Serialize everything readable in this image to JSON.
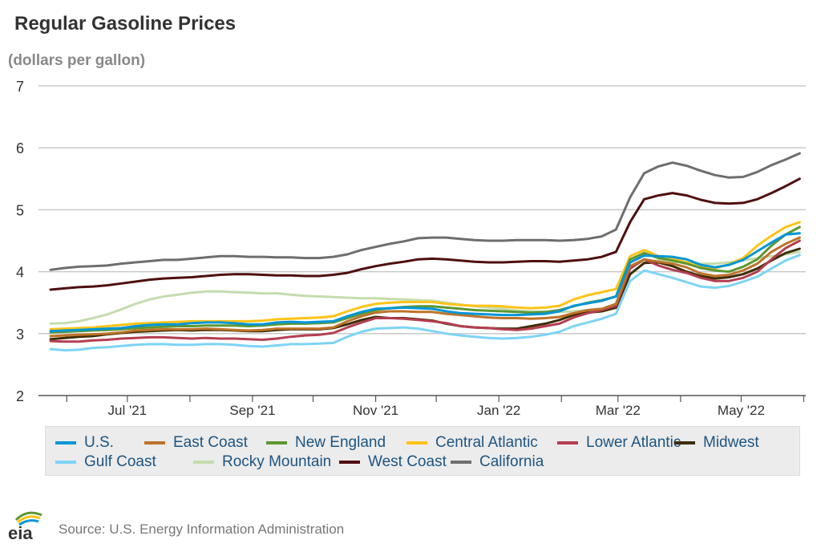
{
  "title": "Regular Gasoline Prices",
  "unit_label": "(dollars per gallon)",
  "source": "Source: U.S. Energy Information Administration",
  "logo_text": "eia",
  "chart_data": {
    "type": "line",
    "title": "Regular Gasoline Prices",
    "ylabel": "(dollars per gallon)",
    "ylim": [
      2,
      7
    ],
    "yticks": [
      "2",
      "3",
      "4",
      "5",
      "6",
      "7"
    ],
    "xtick_labels": [
      "Jul '21",
      "Sep '21",
      "Nov '21",
      "Jan '22",
      "Mar '22",
      "May '22"
    ],
    "grid": "horizontal",
    "legend_position": "bottom",
    "x": [
      "2021-05-24",
      "2021-05-31",
      "2021-06-07",
      "2021-06-14",
      "2021-06-21",
      "2021-06-28",
      "2021-07-05",
      "2021-07-12",
      "2021-07-19",
      "2021-07-26",
      "2021-08-02",
      "2021-08-09",
      "2021-08-16",
      "2021-08-23",
      "2021-08-30",
      "2021-09-06",
      "2021-09-13",
      "2021-09-20",
      "2021-09-27",
      "2021-10-04",
      "2021-10-11",
      "2021-10-18",
      "2021-10-25",
      "2021-11-01",
      "2021-11-08",
      "2021-11-15",
      "2021-11-22",
      "2021-11-29",
      "2021-12-06",
      "2021-12-13",
      "2021-12-20",
      "2021-12-27",
      "2022-01-03",
      "2022-01-10",
      "2022-01-17",
      "2022-01-24",
      "2022-01-31",
      "2022-02-07",
      "2022-02-14",
      "2022-02-21",
      "2022-02-28",
      "2022-03-07",
      "2022-03-14",
      "2022-03-21",
      "2022-03-28",
      "2022-04-04",
      "2022-04-11",
      "2022-04-18",
      "2022-04-25",
      "2022-05-02",
      "2022-05-09",
      "2022-05-16",
      "2022-05-23",
      "2022-05-30"
    ],
    "series": [
      {
        "name": "U.S.",
        "color": "#0096d7",
        "values": [
          3.04,
          3.05,
          3.06,
          3.07,
          3.08,
          3.09,
          3.12,
          3.14,
          3.15,
          3.15,
          3.17,
          3.18,
          3.18,
          3.17,
          3.15,
          3.15,
          3.18,
          3.19,
          3.18,
          3.19,
          3.2,
          3.28,
          3.35,
          3.4,
          3.41,
          3.42,
          3.41,
          3.4,
          3.36,
          3.33,
          3.32,
          3.31,
          3.3,
          3.3,
          3.31,
          3.32,
          3.36,
          3.45,
          3.49,
          3.53,
          3.6,
          4.15,
          4.26,
          4.25,
          4.24,
          4.2,
          4.11,
          4.07,
          4.11,
          4.19,
          4.33,
          4.47,
          4.6,
          4.62
        ]
      },
      {
        "name": "East Coast",
        "color": "#bd732a",
        "values": [
          2.96,
          2.97,
          2.98,
          2.99,
          3.0,
          3.02,
          3.05,
          3.06,
          3.07,
          3.07,
          3.07,
          3.08,
          3.07,
          3.06,
          3.05,
          3.06,
          3.08,
          3.08,
          3.08,
          3.08,
          3.1,
          3.2,
          3.28,
          3.34,
          3.36,
          3.36,
          3.35,
          3.35,
          3.32,
          3.3,
          3.28,
          3.26,
          3.25,
          3.25,
          3.24,
          3.25,
          3.27,
          3.33,
          3.38,
          3.4,
          3.48,
          4.09,
          4.2,
          4.16,
          4.13,
          4.07,
          3.97,
          3.93,
          3.95,
          4.02,
          4.13,
          4.32,
          4.45,
          4.55
        ]
      },
      {
        "name": "New England",
        "color": "#5d9732",
        "values": [
          3.02,
          3.03,
          3.04,
          3.05,
          3.06,
          3.07,
          3.09,
          3.1,
          3.11,
          3.12,
          3.12,
          3.13,
          3.13,
          3.13,
          3.12,
          3.13,
          3.15,
          3.16,
          3.16,
          3.17,
          3.18,
          3.25,
          3.32,
          3.38,
          3.41,
          3.43,
          3.44,
          3.44,
          3.42,
          3.4,
          3.38,
          3.37,
          3.36,
          3.35,
          3.34,
          3.35,
          3.38,
          3.44,
          3.5,
          3.54,
          3.6,
          4.2,
          4.3,
          4.22,
          4.18,
          4.13,
          4.06,
          4.02,
          4.0,
          4.08,
          4.2,
          4.42,
          4.6,
          4.72
        ]
      },
      {
        "name": "Central Atlantic",
        "color": "#ffc316",
        "values": [
          3.07,
          3.08,
          3.09,
          3.1,
          3.12,
          3.14,
          3.16,
          3.17,
          3.18,
          3.19,
          3.2,
          3.2,
          3.2,
          3.2,
          3.2,
          3.21,
          3.23,
          3.24,
          3.25,
          3.26,
          3.28,
          3.36,
          3.43,
          3.48,
          3.5,
          3.51,
          3.51,
          3.51,
          3.48,
          3.46,
          3.45,
          3.45,
          3.44,
          3.42,
          3.41,
          3.42,
          3.45,
          3.55,
          3.62,
          3.67,
          3.72,
          4.25,
          4.35,
          4.25,
          4.21,
          4.15,
          4.08,
          4.05,
          4.12,
          4.22,
          4.42,
          4.58,
          4.72,
          4.8
        ]
      },
      {
        "name": "Lower Atlantic",
        "color": "#b43e51",
        "values": [
          2.88,
          2.87,
          2.87,
          2.89,
          2.9,
          2.92,
          2.93,
          2.94,
          2.94,
          2.93,
          2.92,
          2.93,
          2.92,
          2.92,
          2.91,
          2.9,
          2.92,
          2.95,
          2.97,
          2.98,
          3.01,
          3.1,
          3.18,
          3.25,
          3.25,
          3.24,
          3.22,
          3.2,
          3.17,
          3.12,
          3.1,
          3.09,
          3.07,
          3.06,
          3.08,
          3.12,
          3.16,
          3.26,
          3.33,
          3.38,
          3.45,
          4.05,
          4.2,
          4.1,
          4.03,
          3.98,
          3.9,
          3.85,
          3.85,
          3.9,
          4.0,
          4.2,
          4.38,
          4.5
        ]
      },
      {
        "name": "Midwest",
        "color": "#3d2d05",
        "values": [
          2.91,
          2.93,
          2.95,
          2.96,
          2.99,
          3.01,
          3.03,
          3.04,
          3.05,
          3.06,
          3.05,
          3.06,
          3.06,
          3.05,
          3.04,
          3.04,
          3.06,
          3.07,
          3.07,
          3.07,
          3.09,
          3.15,
          3.22,
          3.27,
          3.25,
          3.25,
          3.23,
          3.21,
          3.16,
          3.12,
          3.1,
          3.09,
          3.08,
          3.08,
          3.12,
          3.16,
          3.22,
          3.3,
          3.34,
          3.36,
          3.42,
          3.96,
          4.14,
          4.15,
          4.09,
          4.0,
          3.93,
          3.89,
          3.91,
          3.96,
          4.05,
          4.18,
          4.3,
          4.37
        ]
      },
      {
        "name": "Gulf Coast",
        "color": "#7dd4f5",
        "values": [
          2.75,
          2.73,
          2.74,
          2.77,
          2.78,
          2.8,
          2.82,
          2.83,
          2.83,
          2.82,
          2.82,
          2.83,
          2.83,
          2.82,
          2.8,
          2.79,
          2.81,
          2.83,
          2.83,
          2.84,
          2.85,
          2.95,
          3.03,
          3.08,
          3.09,
          3.1,
          3.08,
          3.04,
          3.0,
          2.97,
          2.95,
          2.93,
          2.92,
          2.93,
          2.95,
          2.98,
          3.03,
          3.12,
          3.18,
          3.24,
          3.32,
          3.85,
          4.02,
          3.96,
          3.9,
          3.83,
          3.76,
          3.74,
          3.77,
          3.84,
          3.92,
          4.05,
          4.18,
          4.27
        ]
      },
      {
        "name": "Rocky Mountain",
        "color": "#c5dcae",
        "values": [
          3.16,
          3.17,
          3.2,
          3.25,
          3.31,
          3.39,
          3.48,
          3.55,
          3.6,
          3.63,
          3.66,
          3.68,
          3.68,
          3.67,
          3.66,
          3.65,
          3.65,
          3.63,
          3.61,
          3.6,
          3.59,
          3.58,
          3.57,
          3.57,
          3.56,
          3.55,
          3.54,
          3.53,
          3.5,
          3.47,
          3.44,
          3.42,
          3.4,
          3.37,
          3.36,
          3.35,
          3.35,
          3.36,
          3.38,
          3.4,
          3.45,
          3.95,
          4.15,
          4.18,
          4.16,
          4.15,
          4.13,
          4.13,
          4.15,
          4.18,
          4.22,
          4.25,
          4.28,
          4.32
        ]
      },
      {
        "name": "West Coast",
        "color": "#4f0f0f",
        "values": [
          3.71,
          3.73,
          3.75,
          3.76,
          3.78,
          3.81,
          3.84,
          3.87,
          3.89,
          3.9,
          3.91,
          3.93,
          3.95,
          3.96,
          3.96,
          3.95,
          3.94,
          3.94,
          3.93,
          3.93,
          3.95,
          3.98,
          4.04,
          4.09,
          4.13,
          4.16,
          4.2,
          4.21,
          4.2,
          4.18,
          4.16,
          4.15,
          4.15,
          4.16,
          4.17,
          4.17,
          4.16,
          4.18,
          4.2,
          4.24,
          4.32,
          4.8,
          5.17,
          5.23,
          5.27,
          5.23,
          5.16,
          5.11,
          5.1,
          5.11,
          5.17,
          5.27,
          5.38,
          5.5
        ]
      },
      {
        "name": "California",
        "color": "#6e6e6e",
        "values": [
          4.03,
          4.06,
          4.08,
          4.09,
          4.1,
          4.13,
          4.15,
          4.17,
          4.19,
          4.19,
          4.21,
          4.23,
          4.25,
          4.25,
          4.24,
          4.24,
          4.23,
          4.23,
          4.22,
          4.22,
          4.24,
          4.28,
          4.35,
          4.4,
          4.45,
          4.49,
          4.54,
          4.55,
          4.55,
          4.53,
          4.51,
          4.5,
          4.5,
          4.51,
          4.51,
          4.51,
          4.5,
          4.51,
          4.53,
          4.57,
          4.68,
          5.2,
          5.59,
          5.7,
          5.76,
          5.71,
          5.63,
          5.56,
          5.52,
          5.53,
          5.61,
          5.72,
          5.81,
          5.91
        ]
      }
    ]
  }
}
